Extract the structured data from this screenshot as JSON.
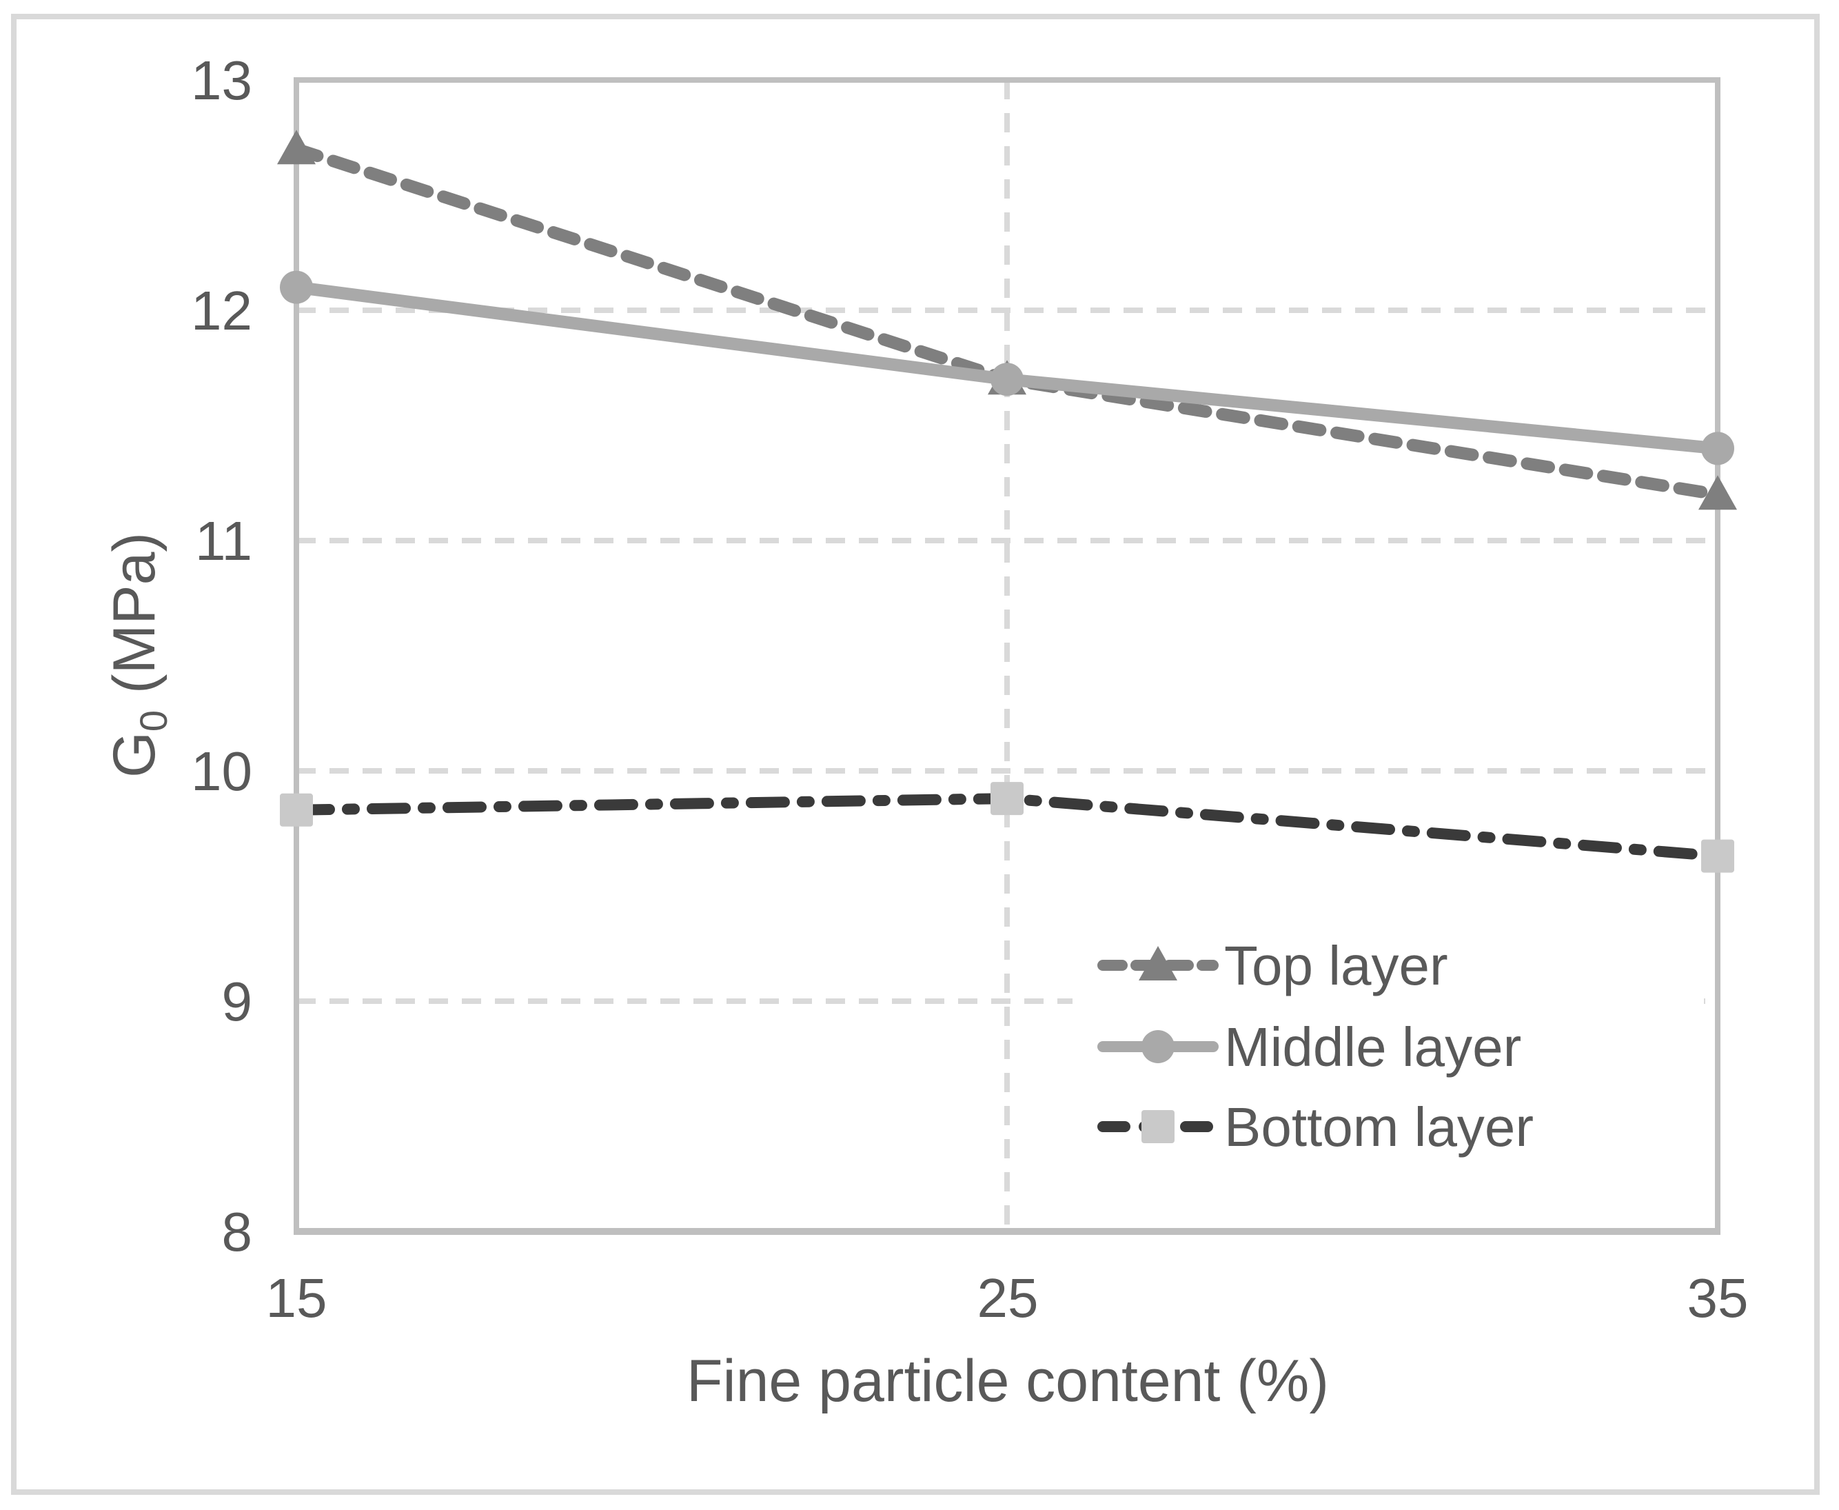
{
  "chart_data": {
    "type": "line",
    "title": "",
    "xlabel": "Fine particle content (%)",
    "ylabel": {
      "main": "G",
      "sub": "0",
      "rest": " (MPa)"
    },
    "x": [
      15,
      25,
      35
    ],
    "xticks": [
      "15",
      "25",
      "35"
    ],
    "yticks": [
      "8",
      "9",
      "10",
      "11",
      "12",
      "13"
    ],
    "xlim": [
      15,
      35
    ],
    "ylim": [
      8,
      13
    ],
    "grid": {
      "style": "dashed",
      "color": "#d9d9d9",
      "horizontal_at": [
        9,
        10,
        11,
        12
      ],
      "vertical_at": [
        25
      ]
    },
    "legend": {
      "position": "inside-lower-right",
      "entries": [
        "Top layer",
        "Middle layer",
        "Bottom layer"
      ]
    },
    "series": [
      {
        "name": "Top layer",
        "values": [
          12.7,
          11.7,
          11.2
        ],
        "line_style": "dashed",
        "color": "#7f7f7f",
        "marker": "triangle",
        "marker_color": "#7f7f7f"
      },
      {
        "name": "Middle layer",
        "values": [
          12.1,
          11.7,
          11.4
        ],
        "line_style": "solid",
        "color": "#a9a9a9",
        "marker": "circle",
        "marker_color": "#a9a9a9"
      },
      {
        "name": "Bottom layer",
        "values": [
          9.83,
          9.88,
          9.63
        ],
        "line_style": "dash-dot",
        "color": "#3a3a3a",
        "marker": "square",
        "marker_color": "#c9c9c9"
      }
    ],
    "colors": {
      "background": "#ffffff",
      "text": "#595959",
      "axis": "#bfbfbf",
      "outer_border": "#d9d9d9",
      "grid": "#d9d9d9",
      "legend_background": "#ffffff"
    }
  }
}
